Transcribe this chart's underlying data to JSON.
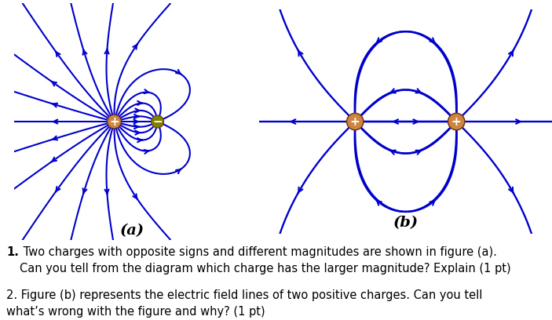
{
  "bg_color": "#ffffff",
  "line_color": "#0000CD",
  "charge_border_color": "#6B3010",
  "charge_pos_fill": "#CD853F",
  "charge_neg_fill": "#808000",
  "fig_width": 7.03,
  "fig_height": 4.08,
  "label_a": "(a)",
  "label_b": "(b)",
  "label_fontsize": 14,
  "text1_num": "1.",
  "text1_body": " Two charges with opposite signs and different magnitudes are shown in figure (a).\nCan you tell from the diagram which charge has the larger magnitude? Explain (1 pt)",
  "text2": "2. Figure (b) represents the electric field lines of two positive charges. Can you tell\nwhat’s wrong with the figure and why? (1 pt)",
  "text_fontsize": 10.5
}
